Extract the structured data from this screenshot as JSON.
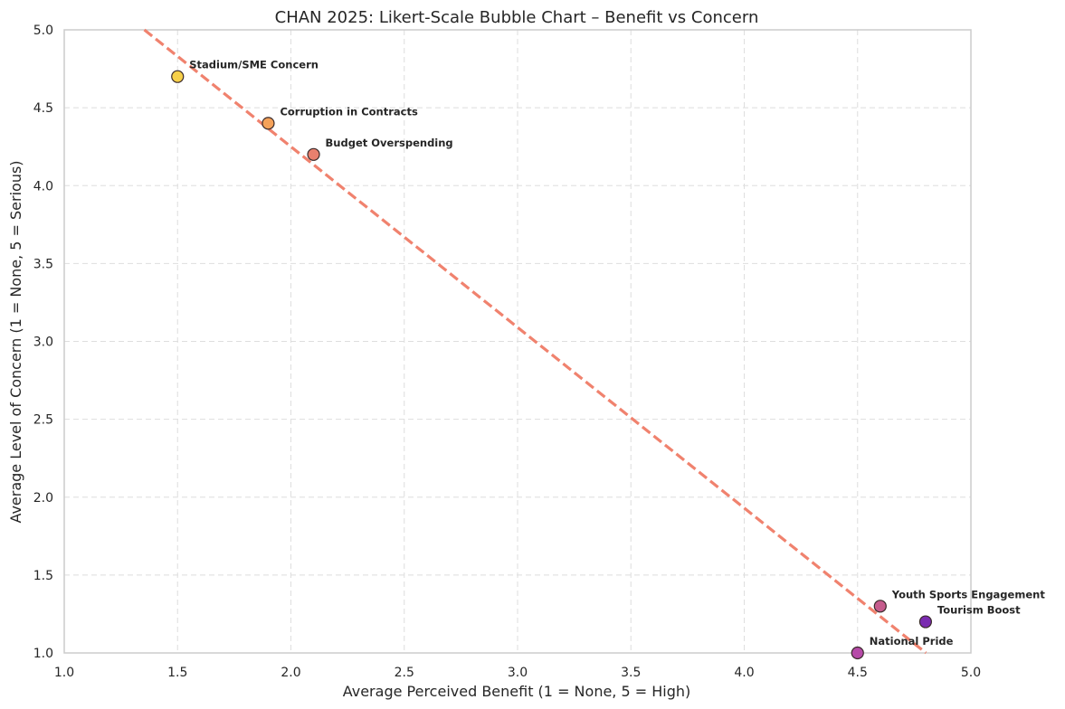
{
  "chart_data": {
    "type": "scatter",
    "title": "CHAN 2025: Likert-Scale Bubble Chart – Benefit vs Concern",
    "xlabel": "Average Perceived Benefit (1 = None, 5 = High)",
    "ylabel": "Average Level of Concern (1 = None, 5 = Serious)",
    "xlim": [
      1.0,
      5.0
    ],
    "ylim": [
      1.0,
      5.0
    ],
    "xticks": [
      "1.0",
      "1.5",
      "2.0",
      "2.5",
      "3.0",
      "3.5",
      "4.0",
      "4.5",
      "5.0"
    ],
    "yticks": [
      "1.0",
      "1.5",
      "2.0",
      "2.5",
      "3.0",
      "3.5",
      "4.0",
      "4.5",
      "5.0"
    ],
    "grid": true,
    "points": [
      {
        "label": "Stadium/SME Concern",
        "x": 1.5,
        "y": 4.7,
        "color": "#f7d04a"
      },
      {
        "label": "Corruption in Contracts",
        "x": 1.9,
        "y": 4.4,
        "color": "#f5a25a"
      },
      {
        "label": "Budget Overspending",
        "x": 2.1,
        "y": 4.2,
        "color": "#e8806e"
      },
      {
        "label": "Youth Sports Engagement",
        "x": 4.6,
        "y": 1.3,
        "color": "#c65c8d"
      },
      {
        "label": "Tourism Boost",
        "x": 4.8,
        "y": 1.2,
        "color": "#7a2bb0"
      },
      {
        "label": "National Pride",
        "x": 4.5,
        "y": 1.0,
        "color": "#b64aa8"
      }
    ],
    "trendline": {
      "slope": -1.16,
      "intercept": 6.57,
      "color": "#f0826e",
      "style": "dashed"
    }
  }
}
